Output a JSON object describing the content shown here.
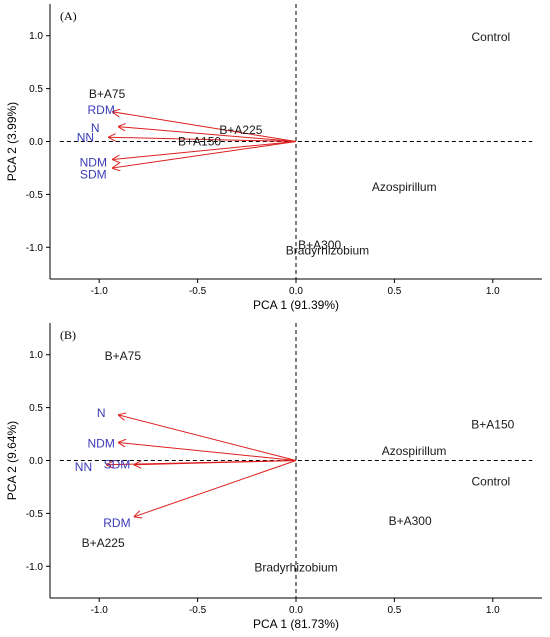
{
  "colors": {
    "arrow": "#dd1f1f",
    "variable_label": "#3a3ab8",
    "treatment_label": "#1a1a1a"
  },
  "chart_data": [
    {
      "type": "scatter",
      "panel_label": "(A)",
      "xlabel": "PCA 1 (91.39%)",
      "ylabel": "PCA 2 (3.99%)",
      "xlim": [
        -1.25,
        1.25
      ],
      "ylim": [
        -1.3,
        1.3
      ],
      "xticks": [
        "-1.0",
        "-0.5",
        "0.0",
        "0.5",
        "1.0"
      ],
      "yticks": [
        "1.0",
        "0.5",
        "0.0",
        "-0.5",
        "-1.0"
      ],
      "grid": false,
      "points": [
        {
          "label": "Control",
          "x": 0.99,
          "y": 0.99
        },
        {
          "label": "B+A75",
          "x": -0.96,
          "y": 0.45
        },
        {
          "label": "B+A225",
          "x": -0.28,
          "y": 0.11
        },
        {
          "label": "B+A150",
          "x": -0.49,
          "y": 0.0
        },
        {
          "label": "Azospirillum",
          "x": 0.55,
          "y": -0.43
        },
        {
          "label": "B+A300",
          "x": 0.12,
          "y": -0.98
        },
        {
          "label": "Bradyrhizobium",
          "x": 0.16,
          "y": -1.03
        }
      ],
      "vectors": [
        {
          "label": "RDM",
          "x": -0.93,
          "y": 0.28,
          "label_x": -0.99,
          "label_y": 0.3
        },
        {
          "label": "N",
          "x": -0.9,
          "y": 0.14,
          "label_x": -1.02,
          "label_y": 0.13
        },
        {
          "label": "NN",
          "x": -0.95,
          "y": 0.04,
          "label_x": -1.07,
          "label_y": 0.04
        },
        {
          "label": "NDM",
          "x": -0.93,
          "y": -0.17,
          "label_x": -1.03,
          "label_y": -0.2
        },
        {
          "label": "SDM",
          "x": -0.93,
          "y": -0.25,
          "label_x": -1.03,
          "label_y": -0.31
        }
      ]
    },
    {
      "type": "scatter",
      "panel_label": "(B)",
      "xlabel": "PCA 1 (81.73%)",
      "ylabel": "PCA 2 (9.64%)",
      "xlim": [
        -1.25,
        1.25
      ],
      "ylim": [
        -1.3,
        1.3
      ],
      "xticks": [
        "-1.0",
        "-0.5",
        "0.0",
        "0.5",
        "1.0"
      ],
      "yticks": [
        "1.0",
        "0.5",
        "0.0",
        "-0.5",
        "-1.0"
      ],
      "grid": false,
      "points": [
        {
          "label": "B+A75",
          "x": -0.88,
          "y": 0.99
        },
        {
          "label": "B+A150",
          "x": 1.0,
          "y": 0.34
        },
        {
          "label": "Azospirillum",
          "x": 0.6,
          "y": 0.09
        },
        {
          "label": "Control",
          "x": 0.99,
          "y": -0.2
        },
        {
          "label": "B+A300",
          "x": 0.58,
          "y": -0.57
        },
        {
          "label": "B+A225",
          "x": -0.98,
          "y": -0.78
        },
        {
          "label": "Bradyrhizobium",
          "x": 0.0,
          "y": -1.01
        }
      ],
      "vectors": [
        {
          "label": "N",
          "x": -0.9,
          "y": 0.43,
          "label_x": -0.99,
          "label_y": 0.45
        },
        {
          "label": "NDM",
          "x": -0.9,
          "y": 0.17,
          "label_x": -0.99,
          "label_y": 0.16
        },
        {
          "label": "NN",
          "x": -0.96,
          "y": -0.04,
          "label_x": -1.08,
          "label_y": -0.06
        },
        {
          "label": "SDM",
          "x": -0.82,
          "y": -0.04,
          "label_x": -0.91,
          "label_y": -0.04
        },
        {
          "label": "RDM",
          "x": -0.82,
          "y": -0.53,
          "label_x": -0.91,
          "label_y": -0.59
        }
      ]
    }
  ]
}
